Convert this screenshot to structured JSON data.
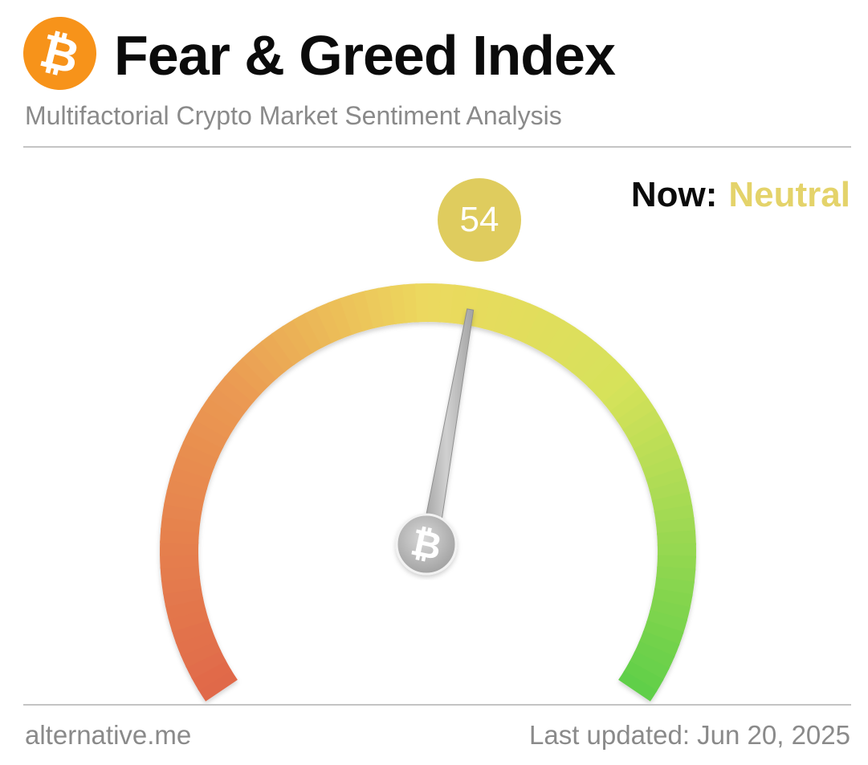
{
  "header": {
    "logo_glyph": "₿",
    "title": "Fear & Greed Index",
    "subtitle": "Multifactorial Crypto Market Sentiment Analysis"
  },
  "status": {
    "now_label": "Now:",
    "now_value": "Neutral"
  },
  "gauge": {
    "value": 54,
    "value_label": "54",
    "min": 0,
    "max": 100,
    "hub_glyph": "₿",
    "colors": {
      "fear": "#e0684a",
      "orange": "#eb9a52",
      "neutral": "#ecd95e",
      "greed_light": "#d6e25a",
      "greed": "#5fcf49",
      "needle": "#b5b5b5",
      "badge": "#dfcc5e"
    }
  },
  "footer": {
    "source": "alternative.me",
    "last_updated": "Last updated: Jun 20, 2025"
  }
}
